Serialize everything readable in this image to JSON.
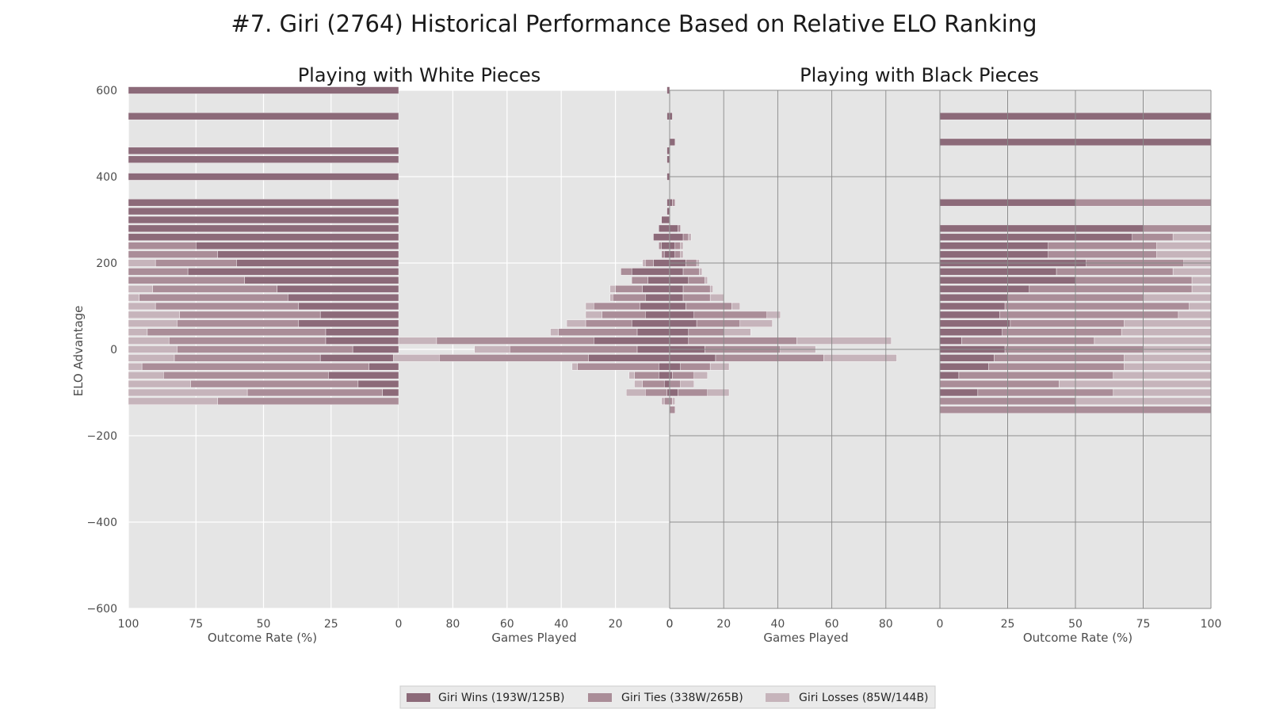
{
  "title": "#7. Giri (2764) Historical Performance Based on Relative ELO Ranking",
  "chart_data": {
    "type": "bar",
    "title": "#7. Giri (2764) Historical Performance Based on Relative ELO Ranking",
    "ylabel": "ELO Advantage",
    "ylim": [
      -600,
      600
    ],
    "yticks": [
      600,
      400,
      200,
      0,
      -200,
      -400,
      -600
    ],
    "bin_width": 20,
    "colors": {
      "wins": "#8c6a79",
      "ties": "#aa8d98",
      "losses": "#c6b4bb",
      "background": "#e5e5e5",
      "grid": "#ffffff",
      "grid_dark": "#8a8a8a"
    },
    "legend": [
      {
        "key": "wins",
        "label": "Giri Wins (193W/125B)"
      },
      {
        "key": "ties",
        "label": "Giri Ties (338W/265B)"
      },
      {
        "key": "losses",
        "label": "Giri Losses (85W/144B)"
      }
    ],
    "legend_position": "bottom-center",
    "panels": [
      {
        "title": "Playing with White Pieces",
        "xlabel": "Outcome Rate (%)",
        "kind": "rate",
        "xticks": [
          "100",
          "75",
          "50",
          "25",
          "0"
        ],
        "rows": [
          {
            "y": 600,
            "w": 100,
            "t": 0,
            "l": 0
          },
          {
            "y": 540,
            "w": 100,
            "t": 0,
            "l": 0
          },
          {
            "y": 460,
            "w": 100,
            "t": 0,
            "l": 0
          },
          {
            "y": 440,
            "w": 100,
            "t": 0,
            "l": 0
          },
          {
            "y": 400,
            "w": 100,
            "t": 0,
            "l": 0
          },
          {
            "y": 340,
            "w": 100,
            "t": 0,
            "l": 0
          },
          {
            "y": 320,
            "w": 100,
            "t": 0,
            "l": 0
          },
          {
            "y": 300,
            "w": 100,
            "t": 0,
            "l": 0
          },
          {
            "y": 280,
            "w": 100,
            "t": 0,
            "l": 0
          },
          {
            "y": 260,
            "w": 100,
            "t": 0,
            "l": 0
          },
          {
            "y": 240,
            "w": 75,
            "t": 25,
            "l": 0
          },
          {
            "y": 220,
            "w": 67,
            "t": 33,
            "l": 0
          },
          {
            "y": 200,
            "w": 60,
            "t": 30,
            "l": 10
          },
          {
            "y": 180,
            "w": 78,
            "t": 22,
            "l": 0
          },
          {
            "y": 160,
            "w": 57,
            "t": 43,
            "l": 0
          },
          {
            "y": 140,
            "w": 45,
            "t": 46,
            "l": 9
          },
          {
            "y": 120,
            "w": 41,
            "t": 55,
            "l": 4
          },
          {
            "y": 100,
            "w": 37,
            "t": 53,
            "l": 10
          },
          {
            "y": 80,
            "w": 29,
            "t": 52,
            "l": 19
          },
          {
            "y": 60,
            "w": 37,
            "t": 45,
            "l": 18
          },
          {
            "y": 40,
            "w": 27,
            "t": 66,
            "l": 7
          },
          {
            "y": 20,
            "w": 27,
            "t": 58,
            "l": 15
          },
          {
            "y": 0,
            "w": 17,
            "t": 65,
            "l": 18
          },
          {
            "y": -20,
            "w": 29,
            "t": 54,
            "l": 17
          },
          {
            "y": -40,
            "w": 11,
            "t": 84,
            "l": 5
          },
          {
            "y": -60,
            "w": 26,
            "t": 61,
            "l": 13
          },
          {
            "y": -80,
            "w": 15,
            "t": 62,
            "l": 23
          },
          {
            "y": -100,
            "w": 6,
            "t": 50,
            "l": 44
          },
          {
            "y": -120,
            "w": 0,
            "t": 67,
            "l": 33
          }
        ]
      },
      {
        "title": "",
        "xlabel": "Games Played",
        "kind": "count",
        "xticks": [
          "80",
          "60",
          "40",
          "20",
          "0"
        ],
        "rows": [
          {
            "y": 600,
            "w": 1,
            "t": 0,
            "l": 0
          },
          {
            "y": 540,
            "w": 1,
            "t": 0,
            "l": 0
          },
          {
            "y": 460,
            "w": 1,
            "t": 0,
            "l": 0
          },
          {
            "y": 440,
            "w": 1,
            "t": 0,
            "l": 0
          },
          {
            "y": 400,
            "w": 1,
            "t": 0,
            "l": 0
          },
          {
            "y": 340,
            "w": 1,
            "t": 0,
            "l": 0
          },
          {
            "y": 320,
            "w": 1,
            "t": 0,
            "l": 0
          },
          {
            "y": 300,
            "w": 3,
            "t": 0,
            "l": 0
          },
          {
            "y": 280,
            "w": 4,
            "t": 0,
            "l": 0
          },
          {
            "y": 260,
            "w": 6,
            "t": 0,
            "l": 0
          },
          {
            "y": 240,
            "w": 3,
            "t": 1,
            "l": 0
          },
          {
            "y": 220,
            "w": 2,
            "t": 1,
            "l": 0
          },
          {
            "y": 200,
            "w": 6,
            "t": 3,
            "l": 1
          },
          {
            "y": 180,
            "w": 14,
            "t": 4,
            "l": 0
          },
          {
            "y": 160,
            "w": 8,
            "t": 6,
            "l": 0
          },
          {
            "y": 140,
            "w": 10,
            "t": 10,
            "l": 2
          },
          {
            "y": 120,
            "w": 9,
            "t": 12,
            "l": 1
          },
          {
            "y": 100,
            "w": 11,
            "t": 17,
            "l": 3
          },
          {
            "y": 80,
            "w": 9,
            "t": 16,
            "l": 6
          },
          {
            "y": 60,
            "w": 14,
            "t": 17,
            "l": 7
          },
          {
            "y": 40,
            "w": 12,
            "t": 29,
            "l": 3
          },
          {
            "y": 20,
            "w": 28,
            "t": 58,
            "l": 14
          },
          {
            "y": 0,
            "w": 12,
            "t": 47,
            "l": 13
          },
          {
            "y": -20,
            "w": 30,
            "t": 55,
            "l": 17
          },
          {
            "y": -40,
            "w": 4,
            "t": 30,
            "l": 2
          },
          {
            "y": -60,
            "w": 4,
            "t": 9,
            "l": 2
          },
          {
            "y": -80,
            "w": 2,
            "t": 8,
            "l": 3
          },
          {
            "y": -100,
            "w": 1,
            "t": 8,
            "l": 7
          },
          {
            "y": -120,
            "w": 0,
            "t": 2,
            "l": 1
          }
        ]
      },
      {
        "title": "",
        "xlabel": "Games Played",
        "kind": "count",
        "xticks": [
          "0",
          "20",
          "40",
          "60",
          "80"
        ],
        "rows": [
          {
            "y": 540,
            "w": 1,
            "t": 0,
            "l": 0
          },
          {
            "y": 480,
            "w": 2,
            "t": 0,
            "l": 0
          },
          {
            "y": 340,
            "w": 1,
            "t": 1,
            "l": 0
          },
          {
            "y": 280,
            "w": 3,
            "t": 1,
            "l": 0
          },
          {
            "y": 260,
            "w": 5,
            "t": 2,
            "l": 1
          },
          {
            "y": 240,
            "w": 2,
            "t": 2,
            "l": 1
          },
          {
            "y": 220,
            "w": 2,
            "t": 2,
            "l": 1
          },
          {
            "y": 200,
            "w": 6,
            "t": 4,
            "l": 1
          },
          {
            "y": 180,
            "w": 5,
            "t": 6,
            "l": 1
          },
          {
            "y": 160,
            "w": 7,
            "t": 6,
            "l": 1
          },
          {
            "y": 140,
            "w": 5,
            "t": 10,
            "l": 1
          },
          {
            "y": 120,
            "w": 5,
            "t": 10,
            "l": 5
          },
          {
            "y": 100,
            "w": 6,
            "t": 17,
            "l": 3
          },
          {
            "y": 80,
            "w": 9,
            "t": 27,
            "l": 5
          },
          {
            "y": 60,
            "w": 10,
            "t": 16,
            "l": 12
          },
          {
            "y": 40,
            "w": 7,
            "t": 13,
            "l": 10
          },
          {
            "y": 20,
            "w": 7,
            "t": 40,
            "l": 35
          },
          {
            "y": 0,
            "w": 13,
            "t": 28,
            "l": 13
          },
          {
            "y": -20,
            "w": 17,
            "t": 40,
            "l": 27
          },
          {
            "y": -40,
            "w": 4,
            "t": 11,
            "l": 7
          },
          {
            "y": -60,
            "w": 1,
            "t": 8,
            "l": 5
          },
          {
            "y": -80,
            "w": 0,
            "t": 4,
            "l": 5
          },
          {
            "y": -100,
            "w": 3,
            "t": 11,
            "l": 8
          },
          {
            "y": -120,
            "w": 0,
            "t": 1,
            "l": 1
          },
          {
            "y": -140,
            "w": 0,
            "t": 2,
            "l": 0
          }
        ]
      },
      {
        "title": "Playing with Black Pieces",
        "xlabel": "Outcome Rate (%)",
        "kind": "rate",
        "xticks": [
          "0",
          "25",
          "50",
          "75",
          "100"
        ],
        "rows": [
          {
            "y": 540,
            "w": 100,
            "t": 0,
            "l": 0
          },
          {
            "y": 480,
            "w": 100,
            "t": 0,
            "l": 0
          },
          {
            "y": 340,
            "w": 50,
            "t": 50,
            "l": 0
          },
          {
            "y": 280,
            "w": 75,
            "t": 25,
            "l": 0
          },
          {
            "y": 260,
            "w": 71,
            "t": 15,
            "l": 14
          },
          {
            "y": 240,
            "w": 40,
            "t": 40,
            "l": 20
          },
          {
            "y": 220,
            "w": 40,
            "t": 40,
            "l": 20
          },
          {
            "y": 200,
            "w": 54,
            "t": 36,
            "l": 10
          },
          {
            "y": 180,
            "w": 43,
            "t": 43,
            "l": 14
          },
          {
            "y": 160,
            "w": 50,
            "t": 43,
            "l": 7
          },
          {
            "y": 140,
            "w": 33,
            "t": 60,
            "l": 7
          },
          {
            "y": 120,
            "w": 25,
            "t": 50,
            "l": 25
          },
          {
            "y": 100,
            "w": 24,
            "t": 68,
            "l": 8
          },
          {
            "y": 80,
            "w": 22,
            "t": 66,
            "l": 12
          },
          {
            "y": 60,
            "w": 26,
            "t": 42,
            "l": 32
          },
          {
            "y": 40,
            "w": 23,
            "t": 44,
            "l": 33
          },
          {
            "y": 20,
            "w": 8,
            "t": 49,
            "l": 43
          },
          {
            "y": 0,
            "w": 24,
            "t": 51,
            "l": 25
          },
          {
            "y": -20,
            "w": 20,
            "t": 48,
            "l": 32
          },
          {
            "y": -40,
            "w": 18,
            "t": 50,
            "l": 32
          },
          {
            "y": -60,
            "w": 7,
            "t": 57,
            "l": 36
          },
          {
            "y": -80,
            "w": 0,
            "t": 44,
            "l": 56
          },
          {
            "y": -100,
            "w": 14,
            "t": 50,
            "l": 36
          },
          {
            "y": -120,
            "w": 0,
            "t": 50,
            "l": 50
          },
          {
            "y": -140,
            "w": 0,
            "t": 100,
            "l": 0
          }
        ]
      }
    ]
  }
}
